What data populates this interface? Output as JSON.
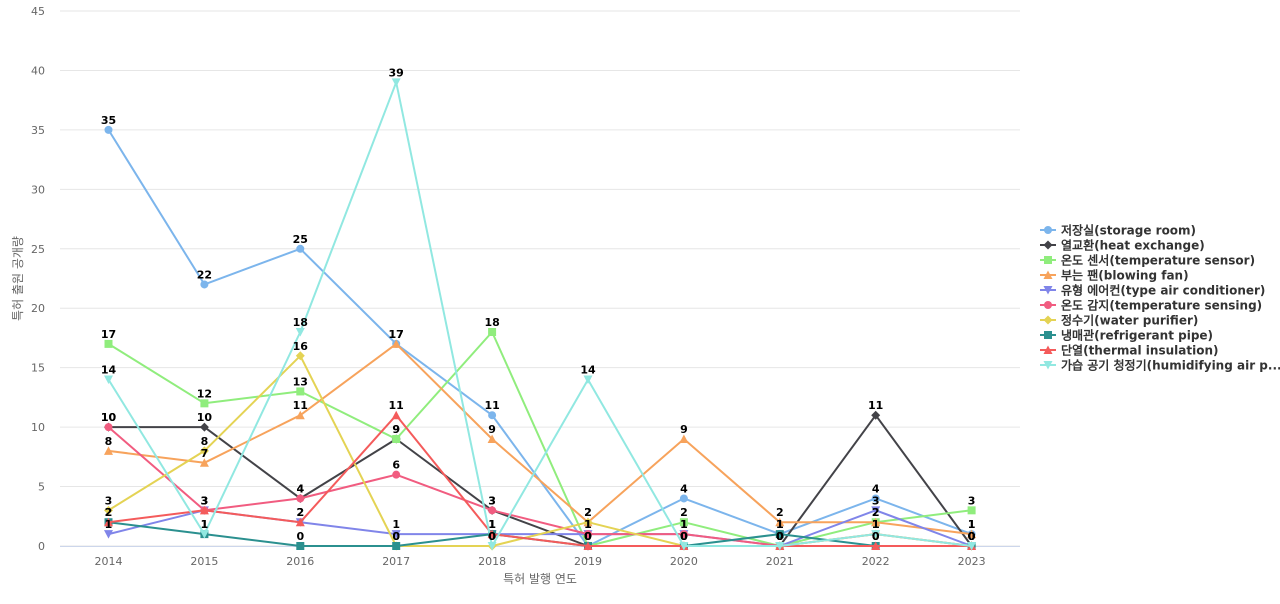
{
  "chart_data": {
    "type": "line",
    "title": "",
    "xlabel": "특허 발행 연도",
    "ylabel": "특허 출원 공개량",
    "ylim": [
      0,
      45
    ],
    "yticks": [
      0,
      5,
      10,
      15,
      20,
      25,
      30,
      35,
      40,
      45
    ],
    "grid": true,
    "legend": "right",
    "categories": [
      "2014",
      "2015",
      "2016",
      "2017",
      "2018",
      "2019",
      "2020",
      "2021",
      "2022",
      "2023"
    ],
    "series": [
      {
        "name": "저장실(storage room)",
        "color": "#7cb5ec",
        "marker": "circle",
        "values": [
          35,
          22,
          25,
          17,
          11,
          0,
          4,
          1,
          4,
          1
        ]
      },
      {
        "name": "열교환(heat exchange)",
        "color": "#434348",
        "marker": "diamond",
        "values": [
          10,
          10,
          4,
          9,
          3,
          0,
          0,
          0,
          11,
          0
        ]
      },
      {
        "name": "온도 센서(temperature sensor)",
        "color": "#90ed7d",
        "marker": "square",
        "values": [
          17,
          12,
          13,
          9,
          18,
          0,
          2,
          0,
          2,
          3
        ]
      },
      {
        "name": "부는 팬(blowing fan)",
        "color": "#f7a35c",
        "marker": "triangle",
        "values": [
          8,
          7,
          11,
          17,
          9,
          2,
          9,
          2,
          2,
          1
        ]
      },
      {
        "name": "유형 에어컨(type air conditioner)",
        "color": "#8085e9",
        "marker": "triangle-down",
        "values": [
          1,
          3,
          2,
          1,
          1,
          1,
          1,
          0,
          3,
          0
        ]
      },
      {
        "name": "온도 감지(temperature sensing)",
        "color": "#f15c80",
        "marker": "circle",
        "values": [
          10,
          3,
          4,
          6,
          3,
          1,
          1,
          0,
          1,
          0
        ]
      },
      {
        "name": "정수기(water purifier)",
        "color": "#e4d354",
        "marker": "diamond",
        "values": [
          3,
          8,
          16,
          0,
          0,
          2,
          0,
          0,
          1,
          0
        ]
      },
      {
        "name": "냉매관(refrigerant pipe)",
        "color": "#2b908f",
        "marker": "square",
        "values": [
          2,
          1,
          0,
          0,
          1,
          0,
          0,
          1,
          0,
          0
        ]
      },
      {
        "name": "단열(thermal insulation)",
        "color": "#f45b5b",
        "marker": "triangle",
        "values": [
          2,
          3,
          2,
          11,
          1,
          0,
          0,
          0,
          0,
          0
        ]
      },
      {
        "name": "가습 공기 청정기(humidifying air p...",
        "color": "#91e8e1",
        "marker": "triangle-down",
        "values": [
          14,
          1,
          18,
          39,
          0,
          14,
          0,
          0,
          1,
          0
        ]
      }
    ]
  }
}
